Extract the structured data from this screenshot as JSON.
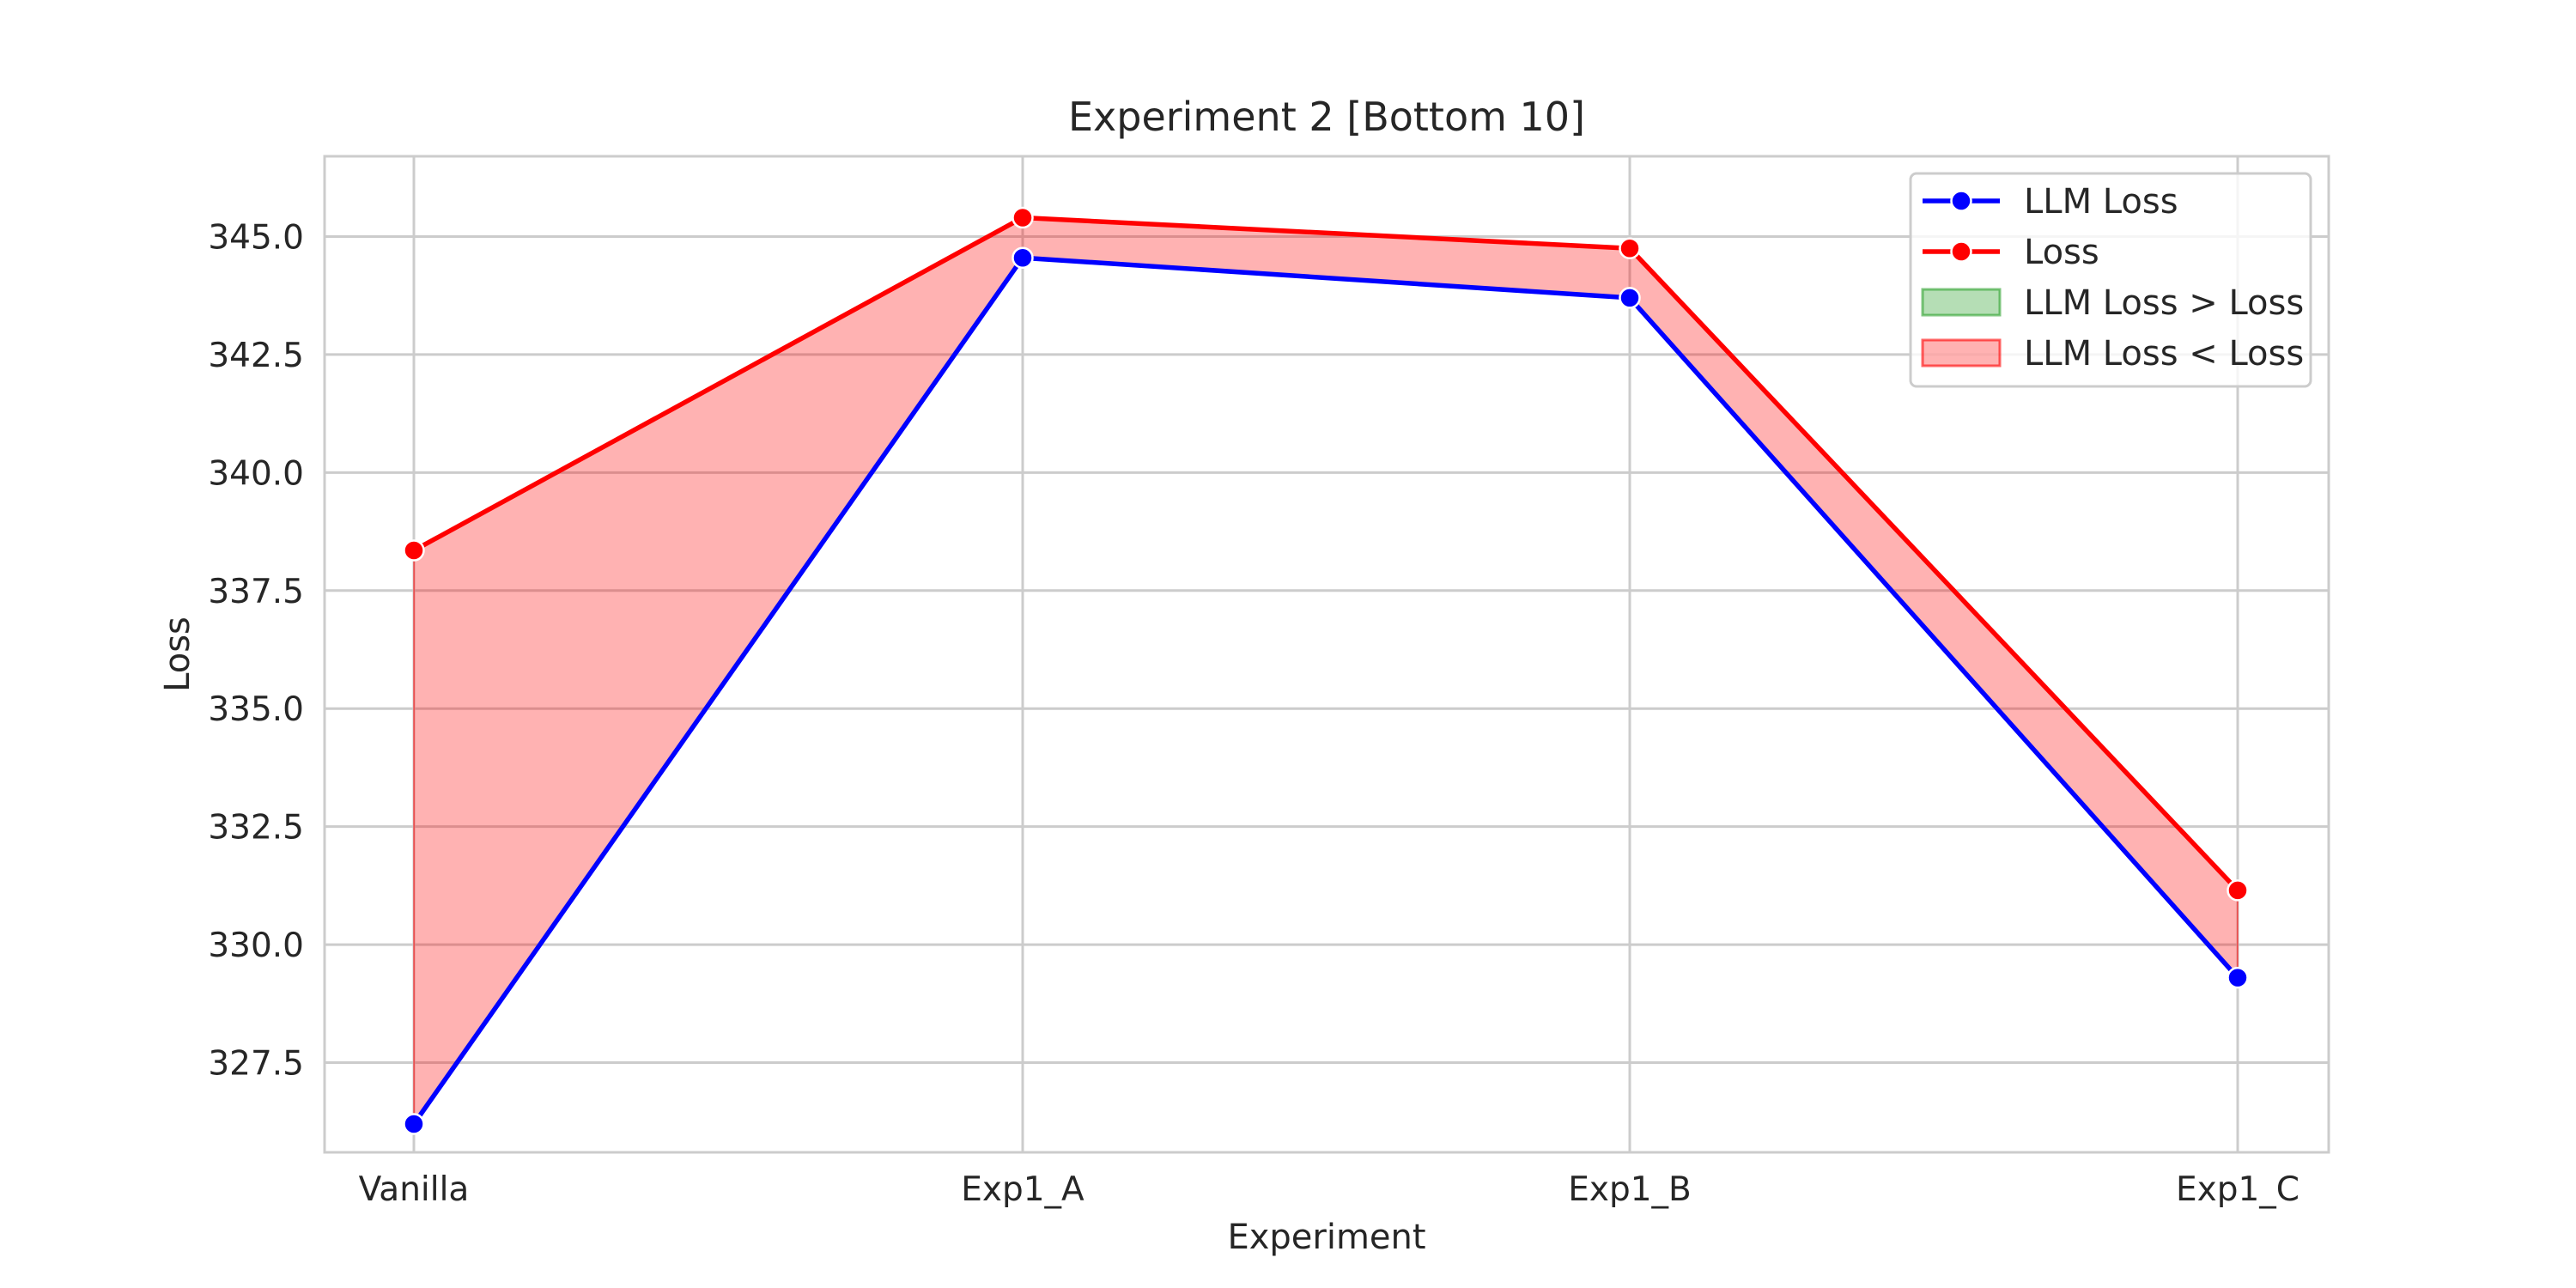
{
  "chart_data": {
    "type": "line",
    "title": "Experiment 2 [Bottom 10]",
    "xlabel": "Experiment",
    "ylabel": "Loss",
    "categories": [
      "Vanilla",
      "Exp1_A",
      "Exp1_B",
      "Exp1_C"
    ],
    "ylim": [
      325.6,
      346.7
    ],
    "yticks": [
      327.5,
      330.0,
      332.5,
      335.0,
      337.5,
      340.0,
      342.5,
      345.0
    ],
    "ytick_labels": [
      "327.5",
      "330.0",
      "332.5",
      "335.0",
      "337.5",
      "340.0",
      "342.5",
      "345.0"
    ],
    "grid": true,
    "legend_position": "top-right",
    "series": [
      {
        "name": "LLM Loss",
        "values": [
          326.2,
          344.55,
          343.7,
          329.3
        ],
        "color": "#0000ff",
        "marker": "circle"
      },
      {
        "name": "Loss",
        "values": [
          338.35,
          345.4,
          344.75,
          331.15
        ],
        "color": "#ff0000",
        "marker": "circle"
      }
    ],
    "fills": [
      {
        "name": "LLM Loss > Loss",
        "color": "#2ca02c",
        "opacity": 0.35
      },
      {
        "name": "LLM Loss < Loss",
        "color": "#ff0000",
        "opacity": 0.3
      }
    ]
  }
}
